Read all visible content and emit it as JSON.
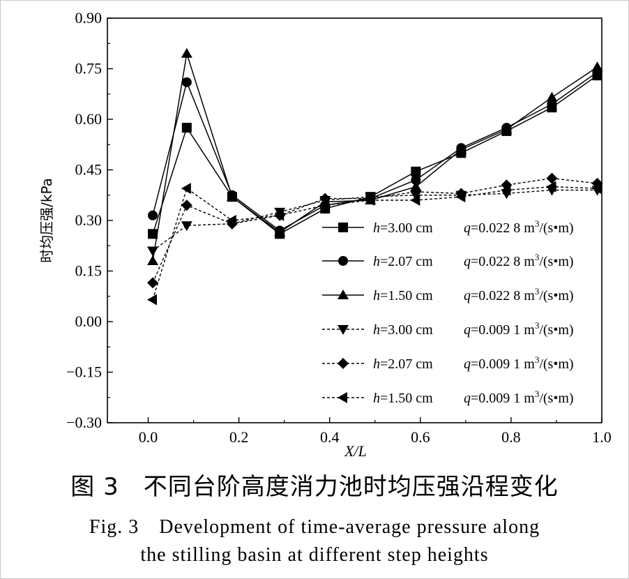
{
  "chart_data": {
    "type": "line",
    "ylabel": "时均压强/kPa",
    "xlabel": "X/L",
    "xlim": [
      -0.09,
      1.0
    ],
    "ylim": [
      -0.3,
      0.9
    ],
    "xticks": [
      "0.0",
      "0.2",
      "0.4",
      "0.6",
      "0.8",
      "1.0"
    ],
    "yticks": [
      "0.90",
      "0.75",
      "0.60",
      "0.45",
      "0.30",
      "0.15",
      "0.00",
      "−0.15",
      "−0.30"
    ],
    "legend_position": "right-middle",
    "x": [
      0.01,
      0.085,
      0.185,
      0.29,
      0.39,
      0.49,
      0.59,
      0.69,
      0.79,
      0.89,
      0.99
    ],
    "series": [
      {
        "h": "h",
        "h_value": "=3.00 cm",
        "q": "q",
        "q_value": "=0.022 8 m",
        "q_unit": "/(s•m)",
        "exp": "3",
        "marker": "square",
        "dash": false,
        "values": [
          0.26,
          0.575,
          0.37,
          0.26,
          0.335,
          0.37,
          0.445,
          0.5,
          0.565,
          0.635,
          0.73
        ]
      },
      {
        "h": "h",
        "h_value": "=2.07 cm",
        "q": "q",
        "q_value": "=0.022 8 m",
        "q_unit": "/(s•m)",
        "exp": "3",
        "marker": "circle",
        "dash": false,
        "values": [
          0.315,
          0.71,
          0.375,
          0.27,
          0.345,
          0.365,
          0.42,
          0.515,
          0.575,
          0.645,
          0.74
        ]
      },
      {
        "h": "h",
        "h_value": "=1.50 cm",
        "q": "q",
        "q_value": "=0.022 8 m",
        "q_unit": "/(s•m)",
        "exp": "3",
        "marker": "triangle-up",
        "dash": false,
        "values": [
          0.18,
          0.795,
          0.37,
          0.265,
          0.355,
          0.36,
          0.4,
          0.51,
          0.57,
          0.665,
          0.755
        ]
      },
      {
        "h": "h",
        "h_value": "=3.00 cm",
        "q": "q",
        "q_value": "=0.009 1 m",
        "q_unit": "/(s•m)",
        "exp": "3",
        "marker": "triangle-down",
        "dash": true,
        "values": [
          0.21,
          0.285,
          0.29,
          0.325,
          0.36,
          0.37,
          0.375,
          0.375,
          0.38,
          0.39,
          0.39
        ]
      },
      {
        "h": "h",
        "h_value": "=2.07 cm",
        "q": "q",
        "q_value": "=0.009 1 m",
        "q_unit": "/(s•m)",
        "exp": "3",
        "marker": "diamond",
        "dash": true,
        "values": [
          0.115,
          0.345,
          0.29,
          0.315,
          0.365,
          0.365,
          0.385,
          0.38,
          0.405,
          0.425,
          0.41
        ]
      },
      {
        "h": "h",
        "h_value": "=1.50 cm",
        "q": "q",
        "q_value": "=0.009 1 m",
        "q_unit": "/(s•m)",
        "exp": "3",
        "marker": "triangle-left",
        "dash": true,
        "values": [
          0.065,
          0.395,
          0.3,
          0.315,
          0.345,
          0.36,
          0.36,
          0.37,
          0.39,
          0.4,
          0.395
        ]
      }
    ]
  },
  "caption": {
    "cn": "图 3　不同台阶高度消力池时均压强沿程变化",
    "en_line1": "Fig. 3　Development of time-average pressure along",
    "en_line2": "the stilling basin at different step heights"
  }
}
